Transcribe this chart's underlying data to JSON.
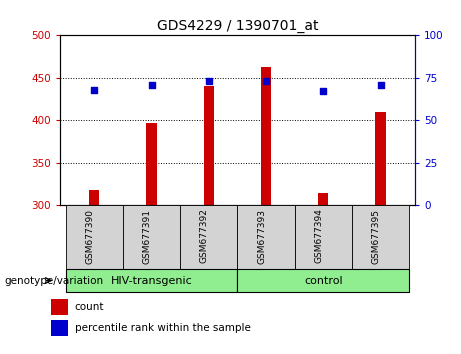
{
  "title": "GDS4229 / 1390701_at",
  "samples": [
    "GSM677390",
    "GSM677391",
    "GSM677392",
    "GSM677393",
    "GSM677394",
    "GSM677395"
  ],
  "count_values": [
    318,
    397,
    440,
    463,
    315,
    410
  ],
  "percentile_values": [
    68,
    71,
    73,
    73,
    67,
    71
  ],
  "ylim_left": [
    300,
    500
  ],
  "ylim_right": [
    0,
    100
  ],
  "yticks_left": [
    300,
    350,
    400,
    450,
    500
  ],
  "yticks_right": [
    0,
    25,
    50,
    75,
    100
  ],
  "bar_color": "#cc0000",
  "dot_color": "#0000cc",
  "bg_color_samples": "#d3d3d3",
  "bg_color_hiv": "#90ee90",
  "bg_color_control": "#90ee90",
  "groups": [
    {
      "label": "HIV-transgenic",
      "samples": [
        0,
        1,
        2
      ]
    },
    {
      "label": "control",
      "samples": [
        3,
        4,
        5
      ]
    }
  ],
  "xlabel_left": "genotype/variation",
  "legend_count": "count",
  "legend_percentile": "percentile rank within the sample",
  "left_axis_color": "#cc0000",
  "right_axis_color": "#0000cc",
  "bar_width": 0.18,
  "dot_size": 20,
  "title_fontsize": 10,
  "tick_fontsize": 7.5,
  "label_fontsize": 6.5,
  "group_fontsize": 8,
  "legend_fontsize": 7.5
}
